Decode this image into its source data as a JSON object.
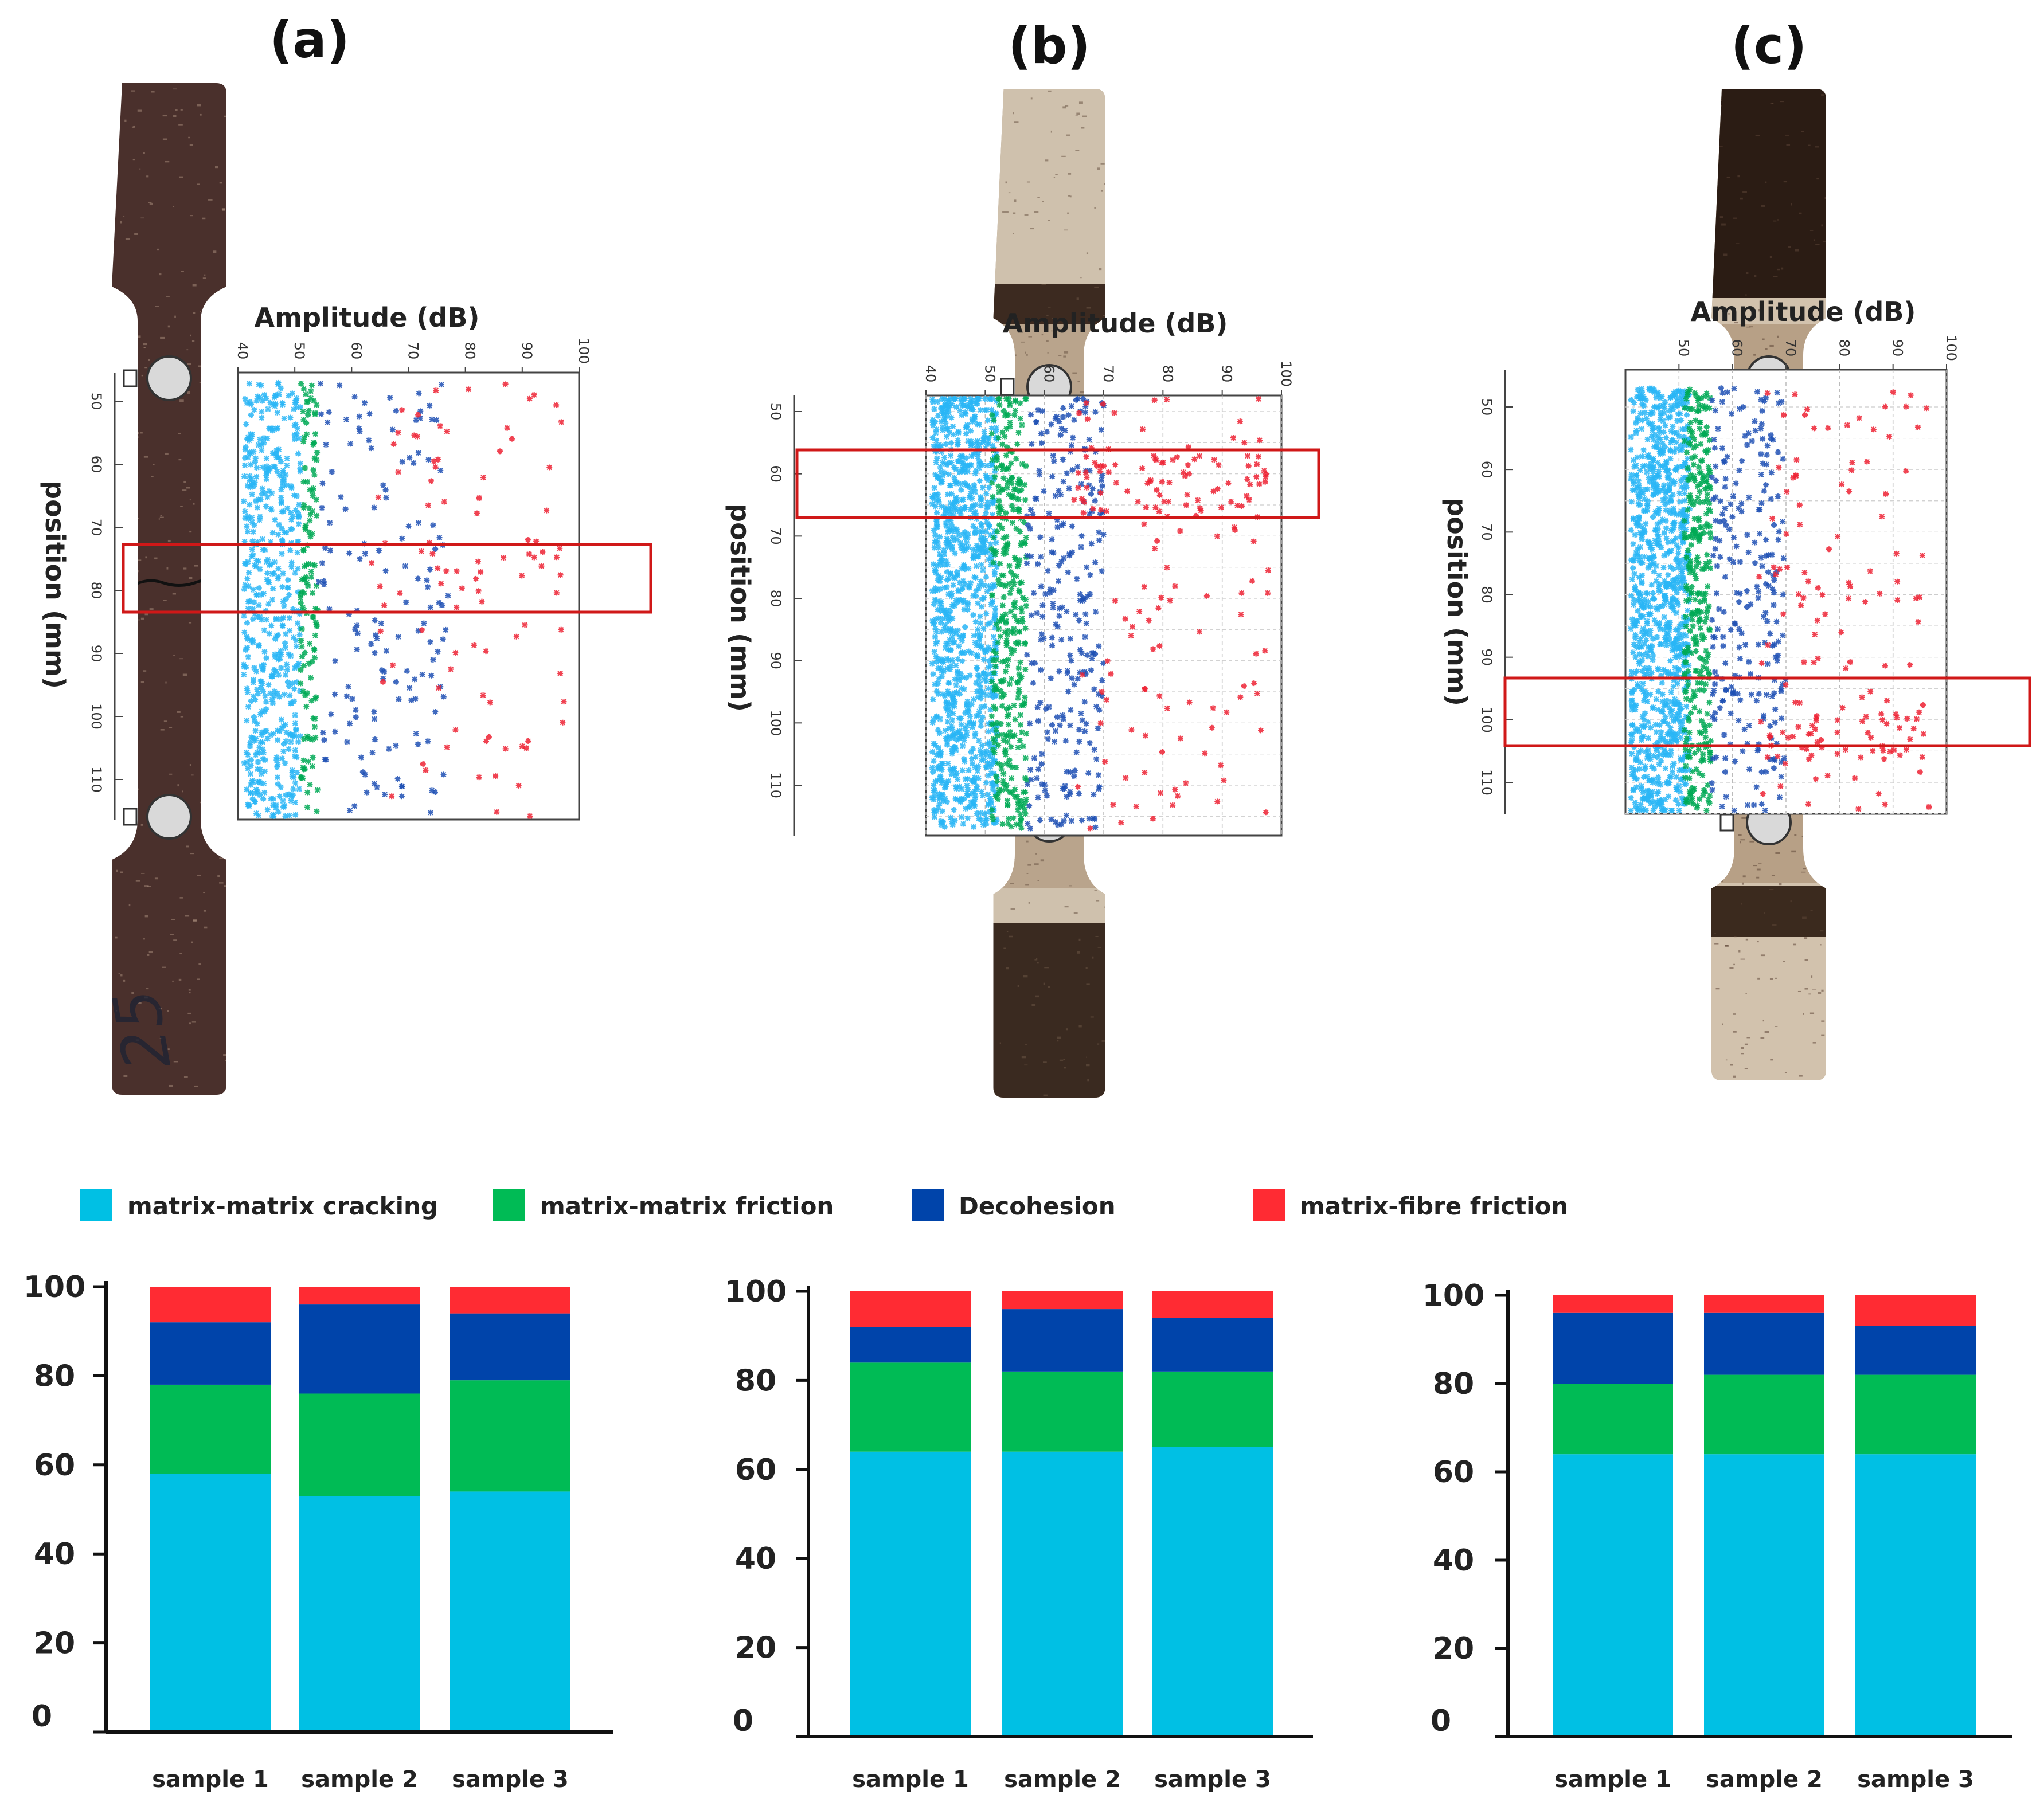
{
  "figure": {
    "panels": [
      {
        "label": "(a)"
      },
      {
        "label": "(b)"
      },
      {
        "label": "(c)"
      }
    ],
    "specimen_marking": "25"
  },
  "legend": [
    {
      "label": "matrix-matrix cracking",
      "color": "#00c0e4"
    },
    {
      "label": "matrix-matrix friction",
      "color": "#00bb55"
    },
    {
      "label": "Decohesion",
      "color": "#0044aa"
    },
    {
      "label": "matrix-fibre friction",
      "color": "#ff2b33"
    }
  ],
  "chart_data": [
    {
      "type": "scatter",
      "panel": "(a)",
      "xlabel": "Amplitude (dB)",
      "ylabel": "position (mm)",
      "xticks": [
        40,
        50,
        60,
        70,
        80,
        90,
        100
      ],
      "yticks": [
        50,
        60,
        70,
        80,
        90,
        100,
        110
      ],
      "xlim": [
        40,
        100
      ],
      "ylim": [
        45,
        117
      ],
      "grid": false,
      "highlight_band": [
        72,
        83
      ],
      "series": [
        {
          "class": "matrix-matrix cracking",
          "color": "#29b6f6",
          "amplitude_range": [
            41,
            51
          ],
          "count": 520
        },
        {
          "class": "matrix-matrix friction",
          "color": "#00aa55",
          "amplitude_range": [
            51,
            54
          ],
          "count": 130
        },
        {
          "class": "Decohesion",
          "color": "#1e50b4",
          "amplitude_range": [
            54,
            77
          ],
          "count": 150
        },
        {
          "class": "matrix-fibre friction",
          "color": "#ee2233",
          "amplitude_range": [
            63,
            98
          ],
          "count": 95
        }
      ]
    },
    {
      "type": "scatter",
      "panel": "(b)",
      "xlabel": "Amplitude (dB)",
      "ylabel": "position (mm)",
      "xticks": [
        40,
        50,
        60,
        70,
        80,
        90,
        100
      ],
      "yticks": [
        50,
        60,
        70,
        80,
        90,
        100,
        110
      ],
      "xlim": [
        40,
        100
      ],
      "ylim": [
        45,
        118
      ],
      "grid": true,
      "highlight_band": [
        57,
        67
      ],
      "series": [
        {
          "class": "matrix-matrix cracking",
          "color": "#29b6f6",
          "amplitude_range": [
            41,
            52
          ],
          "count": 1000
        },
        {
          "class": "matrix-matrix friction",
          "color": "#00aa55",
          "amplitude_range": [
            51,
            57
          ],
          "count": 340
        },
        {
          "class": "Decohesion",
          "color": "#1e50b4",
          "amplitude_range": [
            57,
            70
          ],
          "count": 260
        },
        {
          "class": "matrix-fibre friction",
          "color": "#ee2233",
          "amplitude_range": [
            65,
            98
          ],
          "count": 170
        }
      ]
    },
    {
      "type": "scatter",
      "panel": "(c)",
      "xlabel": "Amplitude (dB)",
      "ylabel": "position (mm)",
      "xticks": [
        50,
        60,
        70,
        80,
        90,
        100
      ],
      "yticks": [
        50,
        60,
        70,
        80,
        90,
        100,
        110
      ],
      "xlim": [
        40,
        100
      ],
      "ylim": [
        45,
        116
      ],
      "grid": true,
      "highlight_band": [
        96,
        106
      ],
      "series": [
        {
          "class": "matrix-matrix cracking",
          "color": "#29b6f6",
          "amplitude_range": [
            41,
            52
          ],
          "count": 950
        },
        {
          "class": "matrix-matrix friction",
          "color": "#00aa55",
          "amplitude_range": [
            51,
            56
          ],
          "count": 320
        },
        {
          "class": "Decohesion",
          "color": "#1e50b4",
          "amplitude_range": [
            56,
            70
          ],
          "count": 240
        },
        {
          "class": "matrix-fibre friction",
          "color": "#ee2233",
          "amplitude_range": [
            64,
            97
          ],
          "count": 150
        }
      ]
    },
    {
      "type": "bar",
      "stacked": true,
      "panel": "(a)",
      "categories": [
        "sample 1",
        "sample 2",
        "sample 3"
      ],
      "ylim": [
        0,
        100
      ],
      "yticks": [
        0,
        20,
        40,
        60,
        80,
        100
      ],
      "series": [
        {
          "name": "matrix-matrix cracking",
          "color": "#00c0e4",
          "values": [
            58,
            53,
            54
          ]
        },
        {
          "name": "matrix-matrix friction",
          "color": "#00bb55",
          "values": [
            20,
            23,
            25
          ]
        },
        {
          "name": "Decohesion",
          "color": "#0044aa",
          "values": [
            14,
            20,
            15
          ]
        },
        {
          "name": "matrix-fibre friction",
          "color": "#ff2b33",
          "values": [
            8,
            4,
            6
          ]
        }
      ]
    },
    {
      "type": "bar",
      "stacked": true,
      "panel": "(b)",
      "categories": [
        "sample 1",
        "sample 2",
        "sample 3"
      ],
      "ylim": [
        0,
        100
      ],
      "yticks": [
        0,
        20,
        40,
        60,
        80,
        100
      ],
      "series": [
        {
          "name": "matrix-matrix cracking",
          "color": "#00c0e4",
          "values": [
            64,
            64,
            65
          ]
        },
        {
          "name": "matrix-matrix friction",
          "color": "#00bb55",
          "values": [
            20,
            18,
            17
          ]
        },
        {
          "name": "Decohesion",
          "color": "#0044aa",
          "values": [
            8,
            14,
            12
          ]
        },
        {
          "name": "matrix-fibre friction",
          "color": "#ff2b33",
          "values": [
            8,
            4,
            6
          ]
        }
      ]
    },
    {
      "type": "bar",
      "stacked": true,
      "panel": "(c)",
      "categories": [
        "sample 1",
        "sample 2",
        "sample 3"
      ],
      "ylim": [
        0,
        100
      ],
      "yticks": [
        0,
        20,
        40,
        60,
        80,
        100
      ],
      "series": [
        {
          "name": "matrix-matrix cracking",
          "color": "#00c0e4",
          "values": [
            64,
            64,
            64
          ]
        },
        {
          "name": "matrix-matrix friction",
          "color": "#00bb55",
          "values": [
            16,
            18,
            18
          ]
        },
        {
          "name": "Decohesion",
          "color": "#0044aa",
          "values": [
            16,
            14,
            11
          ]
        },
        {
          "name": "matrix-fibre friction",
          "color": "#ff2b33",
          "values": [
            4,
            4,
            7
          ]
        }
      ]
    }
  ]
}
